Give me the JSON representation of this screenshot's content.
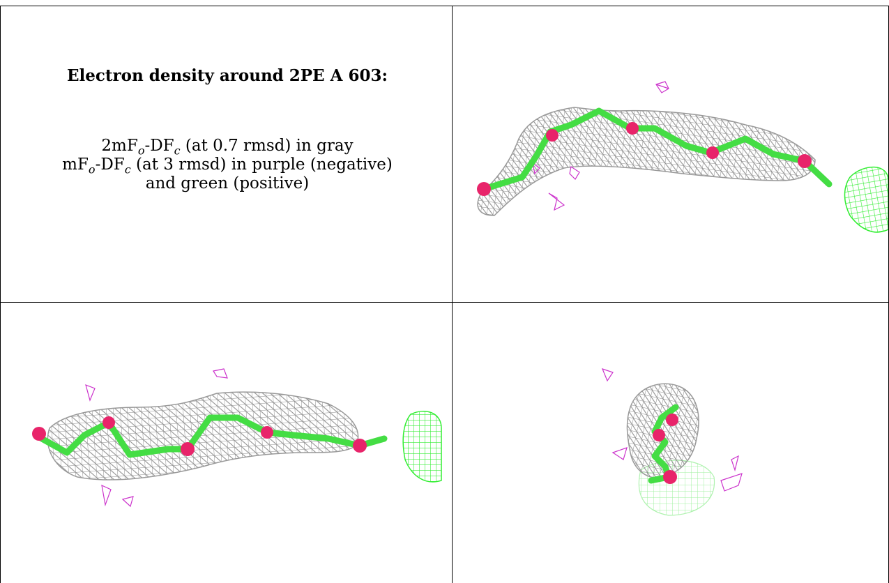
{
  "caption": {
    "title": "Electron density around 2PE A 603:",
    "line1": {
      "pre": "2mF",
      "s1": "o",
      "mid": "-DF",
      "s2": "c",
      "post": " (at 0.7 rmsd) in gray"
    },
    "line2": {
      "pre": "mF",
      "s1": "o",
      "mid": "-DF",
      "s2": "c",
      "post": " (at 3 rmsd) in purple (negative)"
    },
    "line3": "and green (positive)"
  },
  "colors": {
    "two_fo_fc_mesh": "#9a9a9a",
    "negative_difference": "#cc33cc",
    "positive_difference": "#33ee33",
    "carbon_stick": "#44dd44",
    "oxygen_atom": "#e8246a"
  },
  "panels": [
    {
      "view": "top-right"
    },
    {
      "view": "bottom-left"
    },
    {
      "view": "bottom-right"
    }
  ]
}
